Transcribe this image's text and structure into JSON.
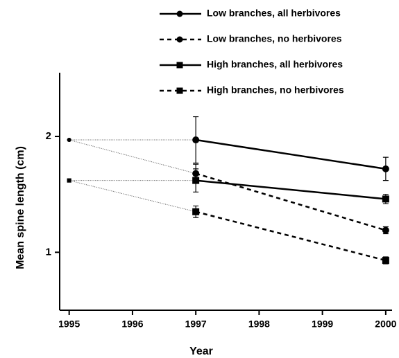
{
  "chart_data": {
    "type": "line",
    "x_label": "Year",
    "y_label": "Mean spine length  (cm)",
    "x": [
      1995,
      1997,
      2000
    ],
    "xlim": [
      1994.85,
      2000.1
    ],
    "xticks": [
      1995,
      1996,
      1997,
      1998,
      1999,
      2000
    ],
    "ylim": [
      0.5,
      2.55
    ],
    "yticks": [
      1,
      2
    ],
    "legend": "top",
    "series": [
      {
        "name": "Low branches, all herbivores",
        "color": "#000000",
        "marker": "circle",
        "dashed": false,
        "values": [
          1.97,
          1.97,
          1.72
        ],
        "errors": [
          null,
          0.2,
          0.1
        ]
      },
      {
        "name": "Low branches, no herbivores",
        "color": "#000000",
        "marker": "circle",
        "dashed": true,
        "values": [
          1.97,
          1.68,
          1.19
        ],
        "errors": [
          null,
          0.08,
          0.03
        ]
      },
      {
        "name": "High branches, all herbivores",
        "color": "#000000",
        "marker": "square",
        "dashed": false,
        "values": [
          1.62,
          1.62,
          1.46
        ],
        "errors": [
          null,
          0.1,
          0.04
        ]
      },
      {
        "name": "High branches, no herbivores",
        "color": "#000000",
        "marker": "square",
        "dashed": true,
        "values": [
          1.62,
          1.35,
          0.93
        ],
        "errors": [
          null,
          0.05,
          0.03
        ]
      }
    ]
  }
}
